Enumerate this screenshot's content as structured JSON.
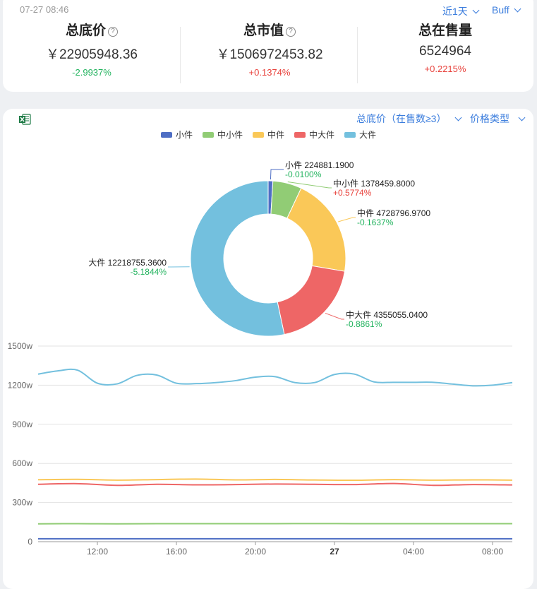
{
  "header": {
    "timestamp": "07-27 08:46",
    "period_dropdown": "近1天",
    "platform_dropdown": "Buff"
  },
  "stats": [
    {
      "label": "总底价",
      "help": "?",
      "value": "￥22905948.36",
      "change": "-2.9937%",
      "change_color": "#22b35e"
    },
    {
      "label": "总市值",
      "help": "?",
      "value": "￥1506972453.82",
      "change": "+0.1374%",
      "change_color": "#e8413b"
    },
    {
      "label": "总在售量",
      "value": "6524964",
      "change": "+0.2215%",
      "change_color": "#e8413b"
    }
  ],
  "chart_controls": {
    "metric_dropdown": "总底价（在售数≥3）",
    "price_type_dropdown": "价格类型",
    "export_icon": "excel-icon"
  },
  "colors": {
    "accent": "#3b7ddd",
    "positive": "#e8413b",
    "negative": "#22b35e"
  },
  "chart_data": [
    {
      "type": "pie",
      "style": "donut",
      "legend": [
        "小件",
        "中小件",
        "中件",
        "中大件",
        "大件"
      ],
      "legend_placement": "top-center",
      "slices": [
        {
          "name": "小件",
          "value": 224881.19,
          "label": "小件 224881.1900",
          "change": "-0.0100%",
          "color": "#4e6ec4",
          "change_color": "#22b35e"
        },
        {
          "name": "中小件",
          "value": 1378459.8,
          "label": "中小件 1378459.8000",
          "change": "+0.5774%",
          "color": "#91cc75",
          "change_color": "#e8413b"
        },
        {
          "name": "中件",
          "value": 4728796.97,
          "label": "中件 4728796.9700",
          "change": "-0.1637%",
          "color": "#fac858",
          "change_color": "#22b35e"
        },
        {
          "name": "中大件",
          "value": 4355055.04,
          "label": "中大件 4355055.0400",
          "change": "-0.8861%",
          "color": "#ee6666",
          "change_color": "#22b35e"
        },
        {
          "name": "大件",
          "value": 12218755.36,
          "label": "大件 12218755.3600",
          "change": "-5.1844%",
          "color": "#73c0de",
          "change_color": "#22b35e"
        }
      ]
    },
    {
      "type": "line",
      "x_ticks": [
        "12:00",
        "16:00",
        "20:00",
        "27",
        "04:00",
        "08:00"
      ],
      "x_range_hours": [
        9,
        33
      ],
      "y_ticks": [
        "0",
        "300w",
        "600w",
        "900w",
        "1200w",
        "1500w"
      ],
      "ylim": [
        0,
        1500
      ],
      "y_unit": "w",
      "grid": true,
      "series": [
        {
          "name": "小件",
          "color": "#4e6ec4",
          "x": [
            9,
            11,
            13,
            15,
            17,
            19,
            21,
            23,
            25,
            27,
            29,
            31,
            33
          ],
          "values": [
            22,
            22,
            22,
            22,
            22,
            22,
            22,
            22,
            22,
            22,
            22,
            22,
            22
          ]
        },
        {
          "name": "中小件",
          "color": "#91cc75",
          "x": [
            9,
            11,
            13,
            15,
            17,
            19,
            21,
            23,
            25,
            27,
            29,
            31,
            33
          ],
          "values": [
            137,
            138,
            137,
            138,
            138,
            138,
            138,
            139,
            138,
            138,
            138,
            138,
            138
          ]
        },
        {
          "name": "中件",
          "color": "#fac858",
          "x": [
            9,
            11,
            13,
            15,
            17,
            19,
            21,
            23,
            25,
            27,
            29,
            31,
            33
          ],
          "values": [
            475,
            478,
            472,
            476,
            480,
            474,
            477,
            473,
            471,
            476,
            472,
            474,
            472
          ]
        },
        {
          "name": "中大件",
          "color": "#ee6666",
          "x": [
            9,
            11,
            13,
            15,
            17,
            19,
            21,
            23,
            25,
            27,
            29,
            31,
            33
          ],
          "values": [
            440,
            445,
            432,
            440,
            436,
            438,
            442,
            440,
            438,
            446,
            432,
            438,
            435
          ]
        },
        {
          "name": "大件",
          "color": "#73c0de",
          "x": [
            9,
            10,
            11,
            12,
            13,
            14,
            15,
            16,
            17,
            18,
            19,
            20,
            21,
            22,
            23,
            24,
            25,
            26,
            27,
            28,
            29,
            30,
            31,
            32,
            33
          ],
          "values": [
            1285,
            1310,
            1315,
            1215,
            1210,
            1275,
            1278,
            1215,
            1212,
            1220,
            1235,
            1262,
            1265,
            1220,
            1220,
            1282,
            1285,
            1225,
            1222,
            1222,
            1222,
            1208,
            1195,
            1200,
            1220
          ]
        }
      ]
    }
  ]
}
